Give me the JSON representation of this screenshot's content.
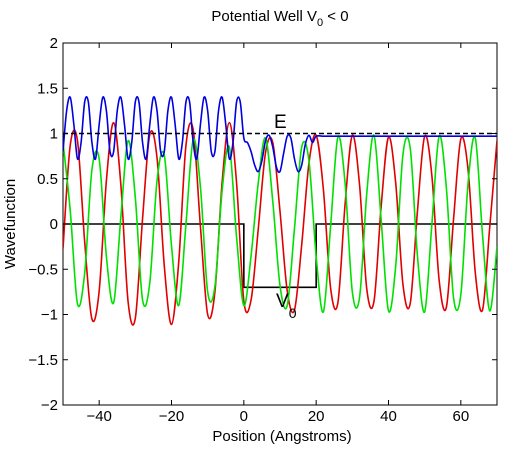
{
  "chart_data": {
    "type": "line",
    "title": {
      "main": "Potential Well V",
      "sub": "0",
      "tail": " < 0"
    },
    "xlabel": "Position (Angstroms)",
    "ylabel": "Wavefunction",
    "xlim": [
      -50,
      70
    ],
    "ylim": [
      -2,
      2
    ],
    "x_ticks": [
      -40,
      -20,
      0,
      20,
      40,
      60
    ],
    "x_tick_labels": [
      "−40",
      "−20",
      "0",
      "20",
      "40",
      "60"
    ],
    "y_ticks": [
      2,
      1.5,
      1,
      0.5,
      0,
      -0.5,
      -1,
      -1.5,
      -2
    ],
    "y_tick_labels": [
      "2",
      "1.5",
      "1",
      "0.5",
      "0",
      "−0.5",
      "−1",
      "−1.5",
      "−2"
    ],
    "grid": false,
    "legend": "none",
    "annotations": {
      "energy_label": "E",
      "potential_label": "V",
      "potential_sub": "0"
    },
    "energy_level": 1.0,
    "potential": {
      "x": [
        -50,
        0,
        0,
        20,
        20,
        70
      ],
      "y": [
        0,
        0,
        -0.7,
        -0.7,
        0,
        0
      ]
    },
    "series": [
      {
        "color": "#e00000",
        "x": [
          -50,
          -48,
          -46,
          -44,
          -42,
          -40,
          -38,
          -36,
          -34,
          -32,
          -30,
          -28,
          -26,
          -24,
          -22,
          -20,
          -18,
          -16,
          -14,
          -12,
          -10,
          -8,
          -6,
          -4,
          -2,
          0,
          2,
          4,
          6,
          8,
          10,
          12,
          14,
          16,
          18,
          20,
          22,
          24,
          26,
          28,
          30,
          32,
          34,
          36,
          38,
          40,
          42,
          44,
          46,
          48,
          50,
          52,
          54,
          56,
          58,
          60,
          62,
          64,
          66,
          68,
          70
        ],
        "y": [
          -0.27,
          0.87,
          0.92,
          -0.2,
          -1.05,
          -0.74,
          0.48,
          1.12,
          0.43,
          -0.86,
          -1.04,
          0.06,
          0.99,
          0.73,
          -0.46,
          -1.11,
          -0.42,
          0.87,
          1.04,
          -0.03,
          -1.0,
          -0.75,
          0.46,
          1.12,
          0.45,
          -0.85,
          -0.84,
          -0.05,
          0.79,
          0.9,
          0.14,
          -0.74,
          -0.95,
          -0.23,
          0.67,
          0.98,
          0.38,
          -0.71,
          -0.87,
          0.22,
          0.98,
          0.43,
          -0.72,
          -0.85,
          0.21,
          0.96,
          0.45,
          -0.67,
          -0.88,
          0.14,
          0.97,
          0.53,
          -0.62,
          -0.92,
          0.06,
          0.94,
          0.6,
          -0.54,
          -0.95,
          -0.03,
          0.92
        ]
      },
      {
        "color": "#00e000",
        "x": [
          -50,
          -48,
          -46,
          -44,
          -42,
          -40,
          -38,
          -36,
          -34,
          -32,
          -30,
          -28,
          -26,
          -24,
          -22,
          -20,
          -18,
          -16,
          -14,
          -12,
          -10,
          -8,
          -6,
          -4,
          -2,
          0,
          2,
          4,
          6,
          8,
          10,
          12,
          14,
          16,
          18,
          20,
          22,
          24,
          26,
          28,
          30,
          32,
          34,
          36,
          38,
          40,
          42,
          44,
          46,
          48,
          50,
          52,
          54,
          56,
          58,
          60,
          62,
          64,
          66,
          68,
          70
        ],
        "y": [
          0.9,
          0.15,
          -0.88,
          -0.54,
          0.6,
          0.72,
          -0.36,
          -0.87,
          0.08,
          0.92,
          0.29,
          -0.84,
          -0.65,
          0.48,
          0.76,
          -0.24,
          -0.9,
          0.0,
          0.93,
          0.41,
          -0.75,
          -0.69,
          0.37,
          0.85,
          -0.15,
          -0.9,
          -0.35,
          0.46,
          0.95,
          0.25,
          -0.68,
          -0.9,
          -0.05,
          0.85,
          0.7,
          -0.36,
          -0.97,
          -0.02,
          0.96,
          0.45,
          -0.75,
          -0.81,
          0.34,
          0.98,
          0.03,
          -0.96,
          -0.46,
          0.77,
          0.84,
          -0.35,
          -0.97,
          0.0,
          0.97,
          0.4,
          -0.82,
          -0.78,
          0.45,
          0.95,
          -0.12,
          -0.96,
          -0.25
        ]
      },
      {
        "color": "#0000e0",
        "x": [
          -50,
          -49,
          -48,
          -47,
          -46,
          -45,
          -44,
          -43,
          -42,
          -41,
          -40,
          -39,
          -38,
          -37,
          -36,
          -35,
          -34,
          -33,
          -32,
          -31,
          -30,
          -29,
          -28,
          -27,
          -26,
          -25,
          -24,
          -23,
          -22,
          -21,
          -20,
          -19,
          -18,
          -17,
          -16,
          -15,
          -14,
          -13,
          -12,
          -11,
          -10,
          -9,
          -8,
          -7,
          -6,
          -5,
          -4,
          -3,
          -2,
          -1,
          0,
          1,
          2,
          3,
          4,
          5,
          6,
          7,
          8,
          9,
          10,
          11,
          12,
          13,
          14,
          15,
          16,
          17,
          18,
          19,
          20,
          22,
          25,
          30,
          40,
          50,
          60,
          70
        ],
        "y": [
          0.8,
          1.25,
          1.4,
          1.1,
          0.72,
          0.9,
          1.35,
          1.35,
          0.9,
          0.72,
          1.1,
          1.4,
          1.25,
          0.8,
          0.8,
          1.25,
          1.4,
          1.1,
          0.72,
          0.9,
          1.35,
          1.35,
          0.9,
          0.72,
          1.1,
          1.4,
          1.25,
          0.8,
          0.8,
          1.25,
          1.4,
          1.1,
          0.72,
          0.9,
          1.35,
          1.35,
          0.9,
          0.72,
          1.1,
          1.4,
          1.25,
          0.8,
          0.8,
          1.25,
          1.4,
          1.1,
          0.72,
          0.9,
          1.35,
          1.35,
          0.95,
          0.9,
          0.8,
          0.65,
          0.58,
          0.7,
          0.92,
          0.98,
          0.85,
          0.63,
          0.58,
          0.78,
          0.97,
          0.95,
          0.72,
          0.58,
          0.65,
          0.88,
          0.98,
          0.9,
          0.97,
          0.97,
          0.97,
          0.97,
          0.97,
          0.97,
          0.97,
          0.97
        ]
      }
    ]
  }
}
